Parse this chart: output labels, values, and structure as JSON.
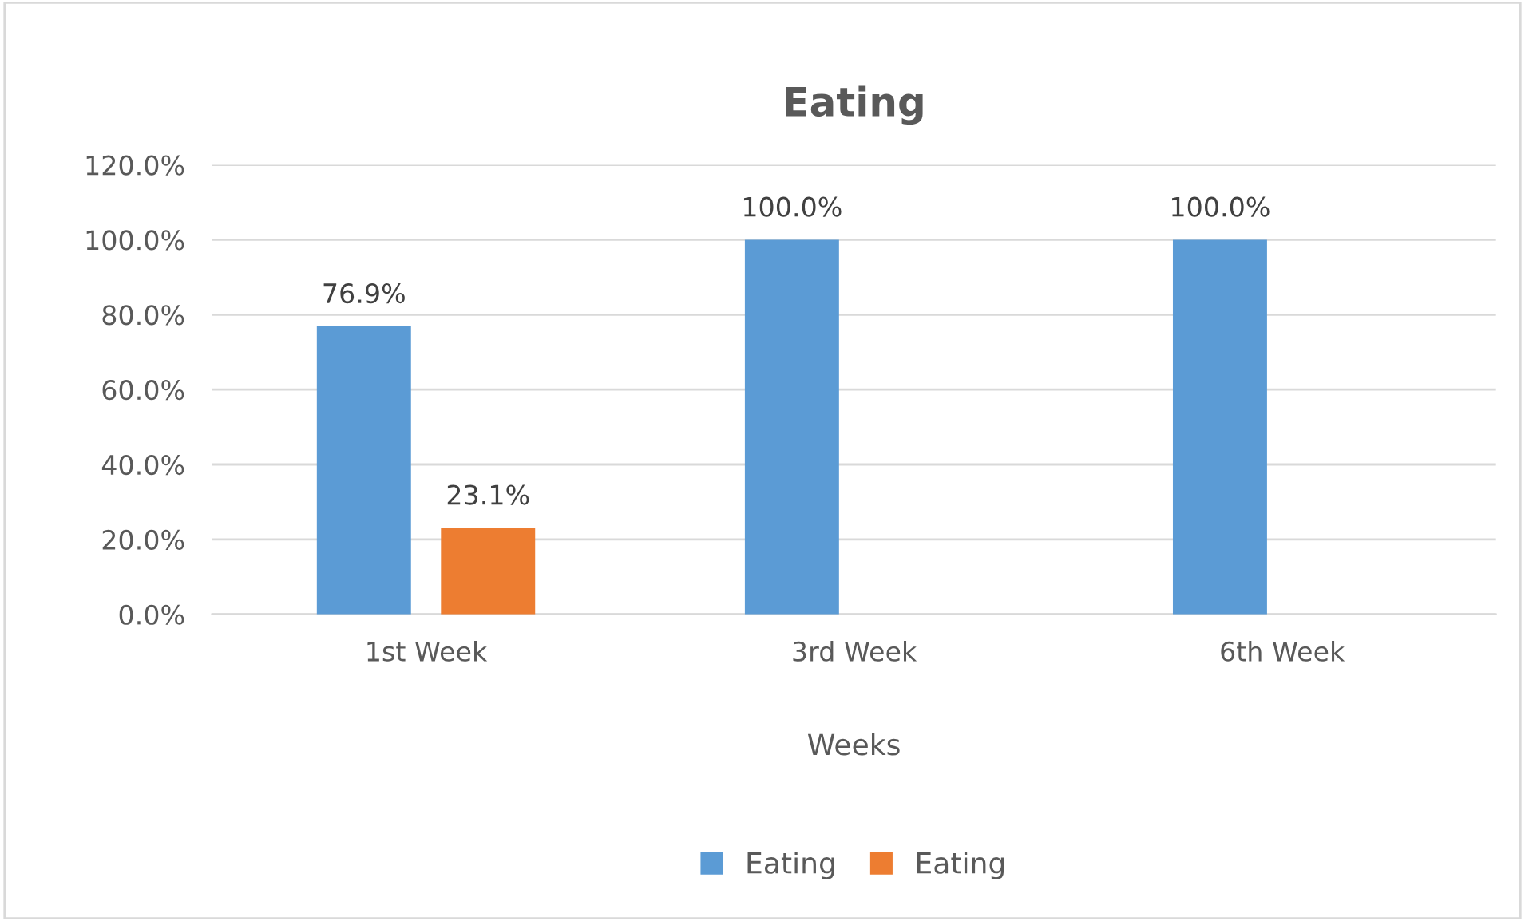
{
  "chart_data": {
    "type": "bar",
    "title": "Eating",
    "xlabel": "Weeks",
    "categories": [
      "1st Week",
      "3rd Week",
      "6th Week"
    ],
    "series": [
      {
        "name": "Eating",
        "color": "#5b9bd5",
        "values": [
          76.9,
          100.0,
          100.0
        ],
        "value_labels": [
          "76.9%",
          "100.0%",
          "100.0%"
        ]
      },
      {
        "name": "Eating",
        "color": "#ed7d31",
        "values": [
          23.1,
          null,
          null
        ],
        "value_labels": [
          "23.1%",
          null,
          null
        ]
      }
    ],
    "ylim": [
      0,
      120
    ],
    "yticks": [
      {
        "value": 0,
        "label": "0.0%"
      },
      {
        "value": 20,
        "label": "20.0%"
      },
      {
        "value": 40,
        "label": "40.0%"
      },
      {
        "value": 60,
        "label": "60.0%"
      },
      {
        "value": 80,
        "label": "80.0%"
      },
      {
        "value": 100,
        "label": "100.0%"
      },
      {
        "value": 120,
        "label": "120.0%"
      }
    ],
    "grid": "y",
    "legend": "bottom"
  }
}
